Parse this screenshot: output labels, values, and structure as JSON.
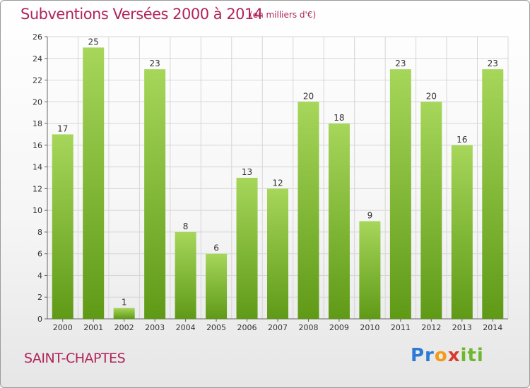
{
  "header": {
    "title": "Subventions Versées 2000 à 2014",
    "subtitle": "(en milliers d'€)"
  },
  "footer": {
    "town": "SAINT-CHAPTES",
    "logo_parts": [
      "Pr",
      "o",
      "x",
      "iti"
    ]
  },
  "colors": {
    "title": "#b0245a",
    "bar_light": "#a6d65a",
    "bar_dark": "#5f9a17",
    "grid": "#d6d6d6"
  },
  "chart_data": {
    "type": "bar",
    "categories": [
      "2000",
      "2001",
      "2002",
      "2003",
      "2004",
      "2005",
      "2006",
      "2007",
      "2008",
      "2009",
      "2010",
      "2011",
      "2012",
      "2013",
      "2014"
    ],
    "values": [
      17,
      25,
      1,
      23,
      8,
      6,
      13,
      12,
      20,
      18,
      9,
      23,
      20,
      16,
      23
    ],
    "title": "Subventions Versées 2000 à 2014",
    "xlabel": "",
    "ylabel": "",
    "ylim": [
      0,
      26
    ],
    "yticks": [
      0,
      2,
      4,
      6,
      8,
      10,
      12,
      14,
      16,
      18,
      20,
      22,
      24,
      26
    ],
    "grid": true,
    "legend": "none"
  }
}
